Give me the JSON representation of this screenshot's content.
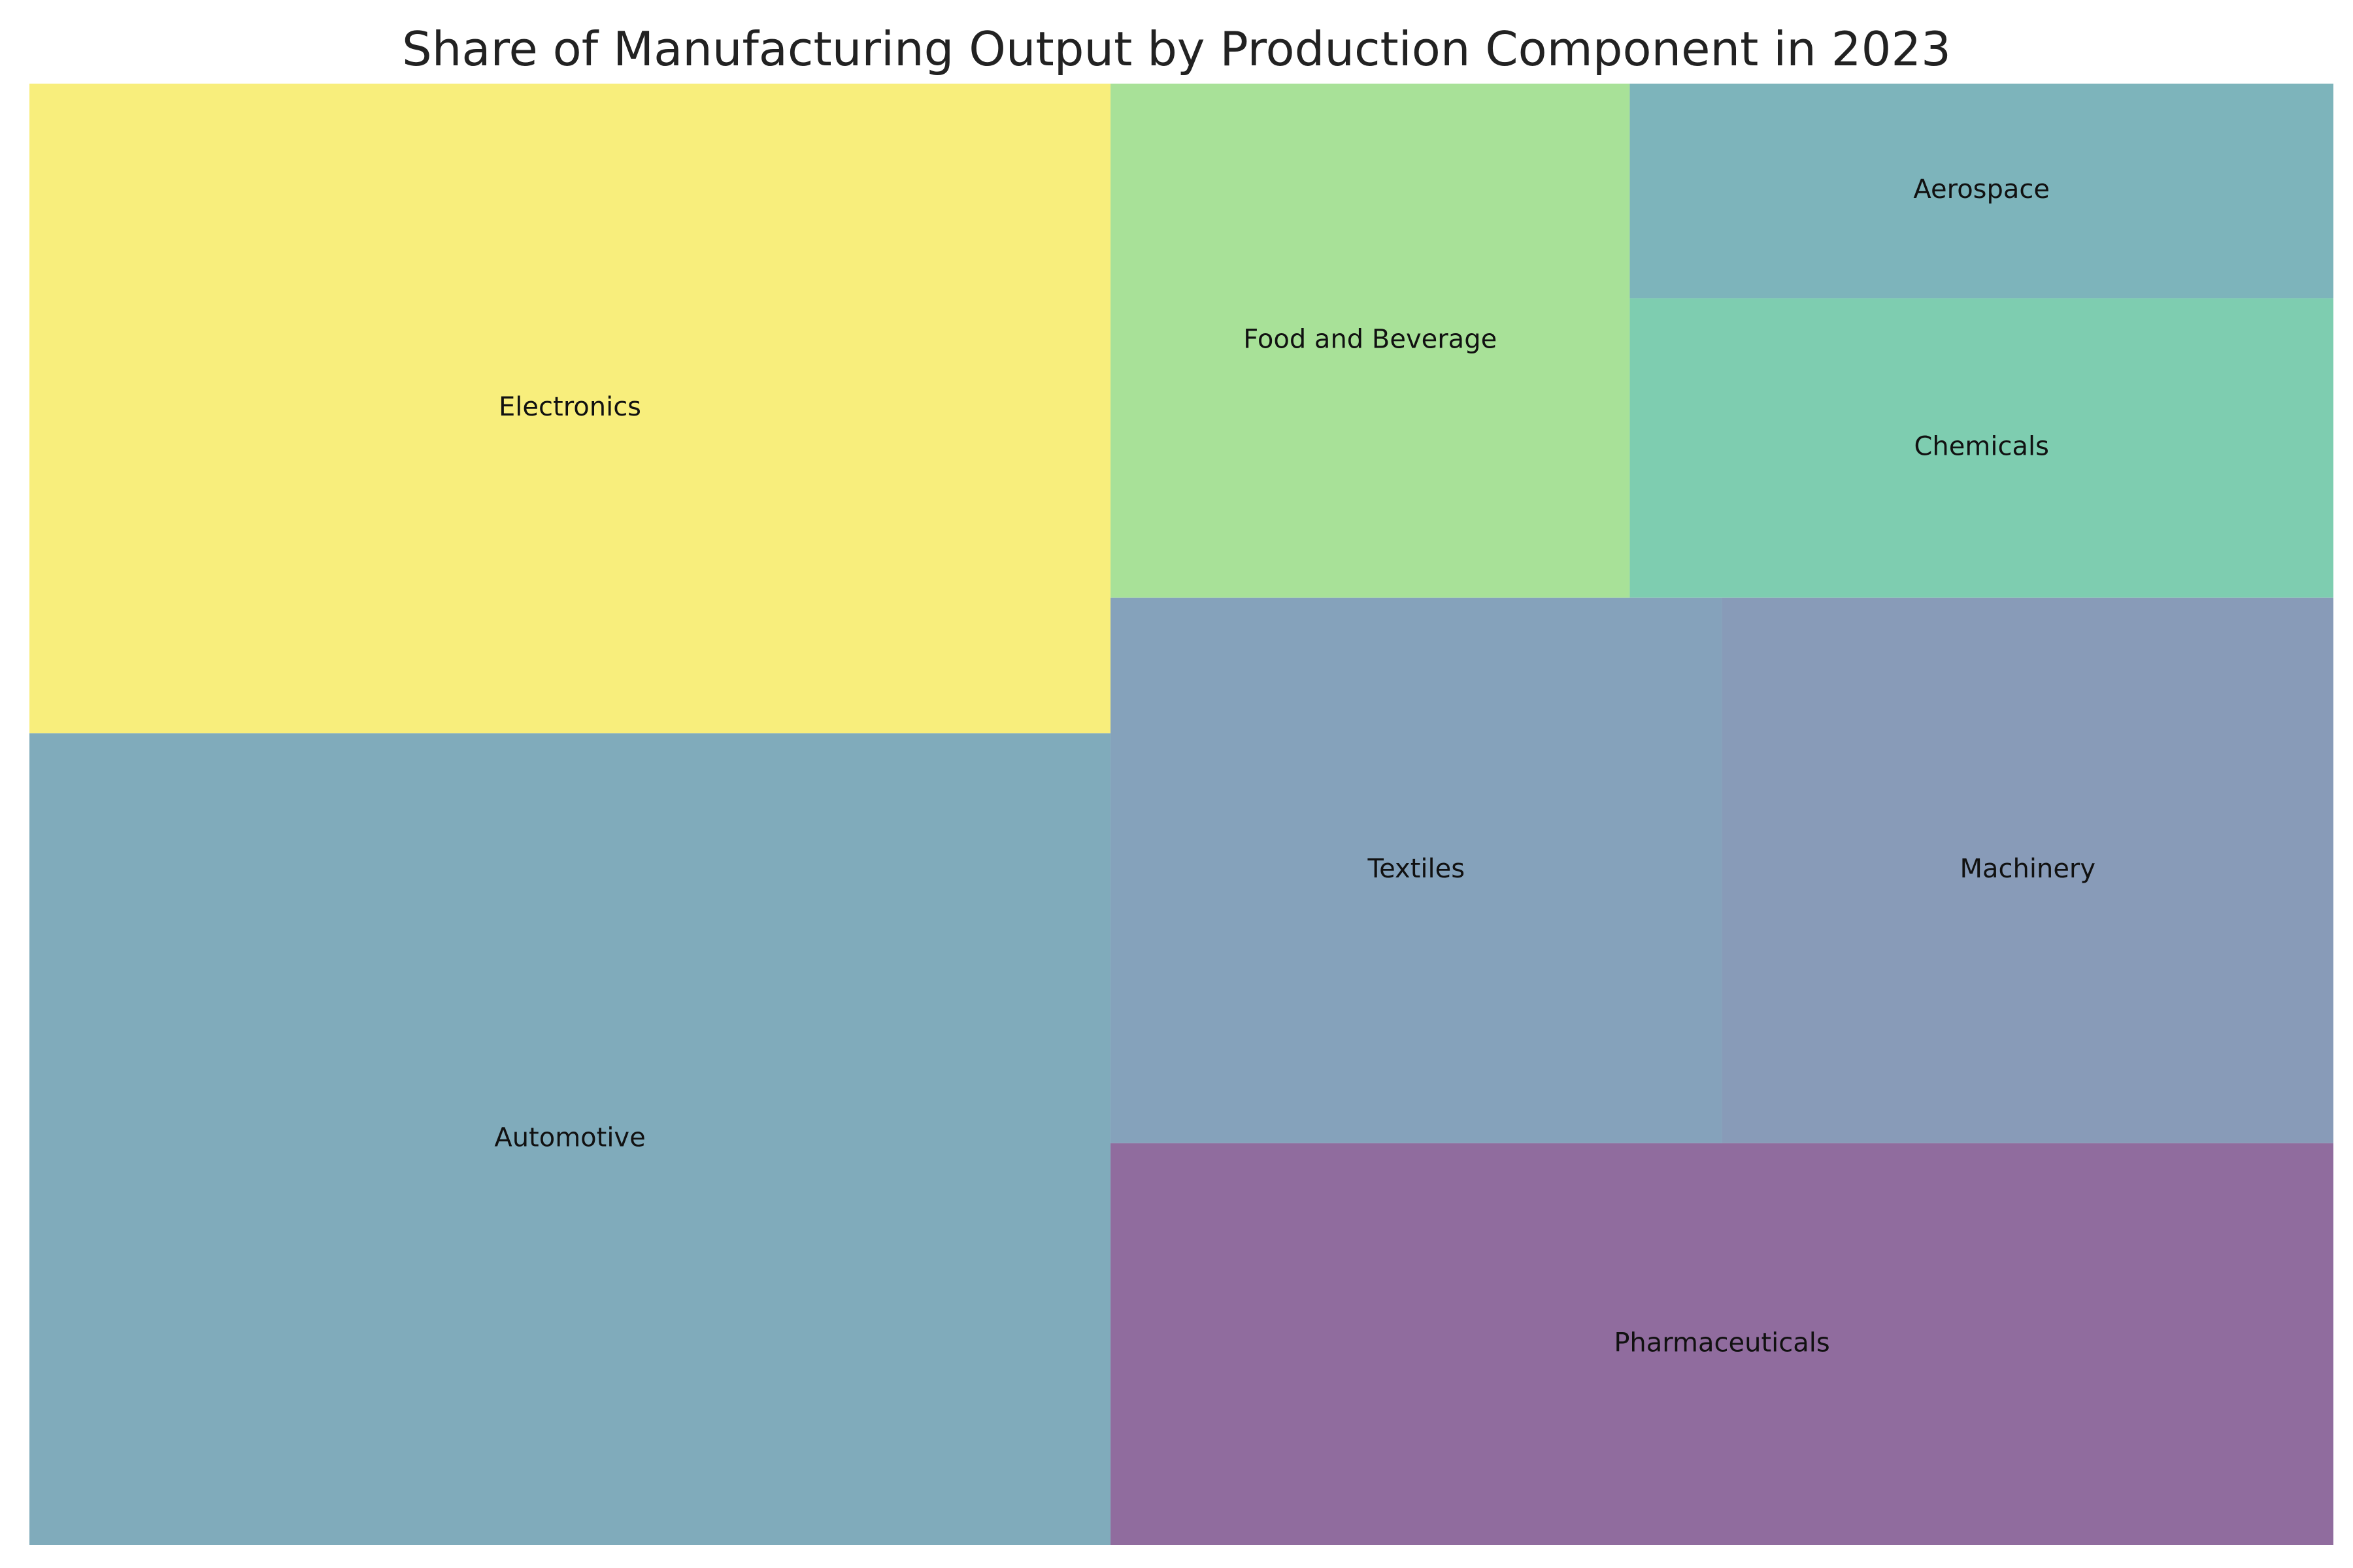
{
  "chart_data": {
    "type": "treemap",
    "title": "Share of Manufacturing Output by Production Component in 2023",
    "items": [
      {
        "label": "Automotive",
        "value": 25.0,
        "color": "#80abbb"
      },
      {
        "label": "Electronics",
        "value": 20.0,
        "color": "#f8ee7c"
      },
      {
        "label": "Pharmaceuticals",
        "value": 14.0,
        "color": "#906c9e"
      },
      {
        "label": "Textiles",
        "value": 9.5,
        "color": "#85a2bb"
      },
      {
        "label": "Machinery",
        "value": 9.5,
        "color": "#889bb8"
      },
      {
        "label": "Food and Beverage",
        "value": 7.6,
        "color": "#a8e198"
      },
      {
        "label": "Chemicals",
        "value": 6.0,
        "color": "#7ecdb0"
      },
      {
        "label": "Aerospace",
        "value": 4.3,
        "color": "#7db4bb"
      }
    ]
  }
}
